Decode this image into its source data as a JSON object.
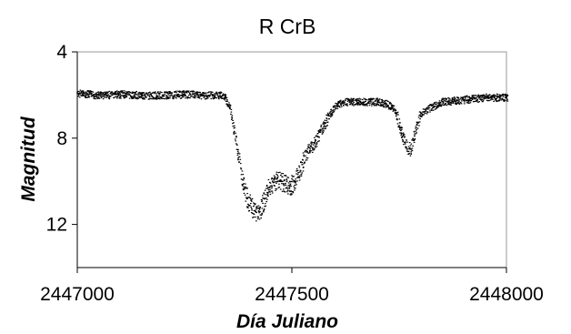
{
  "chart_data": {
    "type": "scatter",
    "title": "R CrB",
    "xlabel": "Día Juliano",
    "ylabel": "Magnitud",
    "xlim": [
      2447000,
      2448000
    ],
    "ylim": [
      4,
      14
    ],
    "y_inverted": true,
    "xticks": [
      2447000,
      2447500,
      2448000
    ],
    "xtick_labels": [
      "2447000",
      "2447500",
      "2448000"
    ],
    "yticks": [
      4,
      8,
      12
    ],
    "ytick_labels": [
      "4",
      "8",
      "12"
    ],
    "grid": false,
    "legend": "none",
    "marker_color": "#000000",
    "series": [
      {
        "x": [
          2447000,
          2447050,
          2447100,
          2447150,
          2447200,
          2447250,
          2447300,
          2447340,
          2447355,
          2447365,
          2447375,
          2447385,
          2447395,
          2447405,
          2447415,
          2447425,
          2447435,
          2447445,
          2447455,
          2447465,
          2447475,
          2447485,
          2447495,
          2447505,
          2447515,
          2447525,
          2447535,
          2447545,
          2447555,
          2447565,
          2447575,
          2447585,
          2447600,
          2447620,
          2447640,
          2447660,
          2447680,
          2447700,
          2447720,
          2447735,
          2447745,
          2447755,
          2447765,
          2447775,
          2447785,
          2447800,
          2447850,
          2447900,
          2447950,
          2448000
        ],
        "y": [
          5.9,
          6.0,
          5.95,
          6.0,
          6.0,
          5.95,
          6.0,
          6.0,
          6.6,
          7.8,
          9.0,
          10.2,
          10.8,
          11.2,
          11.4,
          11.3,
          10.8,
          10.3,
          10.0,
          9.9,
          10.0,
          10.1,
          10.2,
          10.0,
          9.6,
          9.0,
          8.6,
          8.4,
          8.1,
          7.7,
          7.3,
          6.9,
          6.5,
          6.3,
          6.3,
          6.3,
          6.3,
          6.3,
          6.4,
          6.6,
          7.1,
          7.8,
          8.4,
          8.5,
          7.7,
          6.8,
          6.3,
          6.2,
          6.1,
          6.1
        ]
      }
    ]
  }
}
